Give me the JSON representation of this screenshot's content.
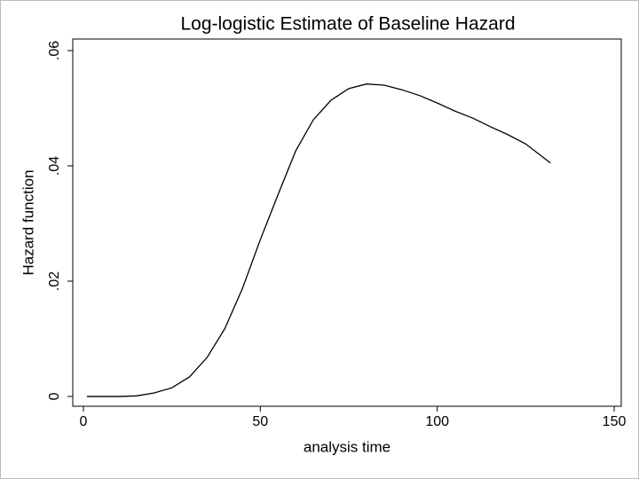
{
  "chart_data": {
    "type": "line",
    "title": "Log-logistic Estimate of Baseline Hazard",
    "xlabel": "analysis time",
    "ylabel": "Hazard function",
    "x": [
      1,
      5,
      10,
      15,
      20,
      25,
      30,
      35,
      40,
      45,
      50,
      55,
      60,
      65,
      70,
      75,
      80,
      85,
      90,
      95,
      100,
      105,
      110,
      115,
      120,
      125,
      132
    ],
    "series": [
      {
        "name": "Hazard function",
        "color": "#000000",
        "values": [
          0,
          0,
          0,
          0.0001,
          0.0006,
          0.0015,
          0.0034,
          0.0068,
          0.0118,
          0.0188,
          0.0272,
          0.035,
          0.0426,
          0.048,
          0.0514,
          0.0534,
          0.0542,
          0.054,
          0.0532,
          0.0522,
          0.0509,
          0.0495,
          0.0483,
          0.0468,
          0.0454,
          0.0438,
          0.0405
        ]
      }
    ],
    "xlim": [
      -3,
      152
    ],
    "xticks": [
      0,
      50,
      100,
      150
    ],
    "ylim": [
      -0.0017,
      0.062
    ],
    "yticks": [
      0,
      {
        "value": 0.02,
        "label": ".02"
      },
      {
        "value": 0.04,
        "label": ".04"
      },
      {
        "value": 0.06,
        "label": ".06"
      }
    ],
    "grid": false
  }
}
